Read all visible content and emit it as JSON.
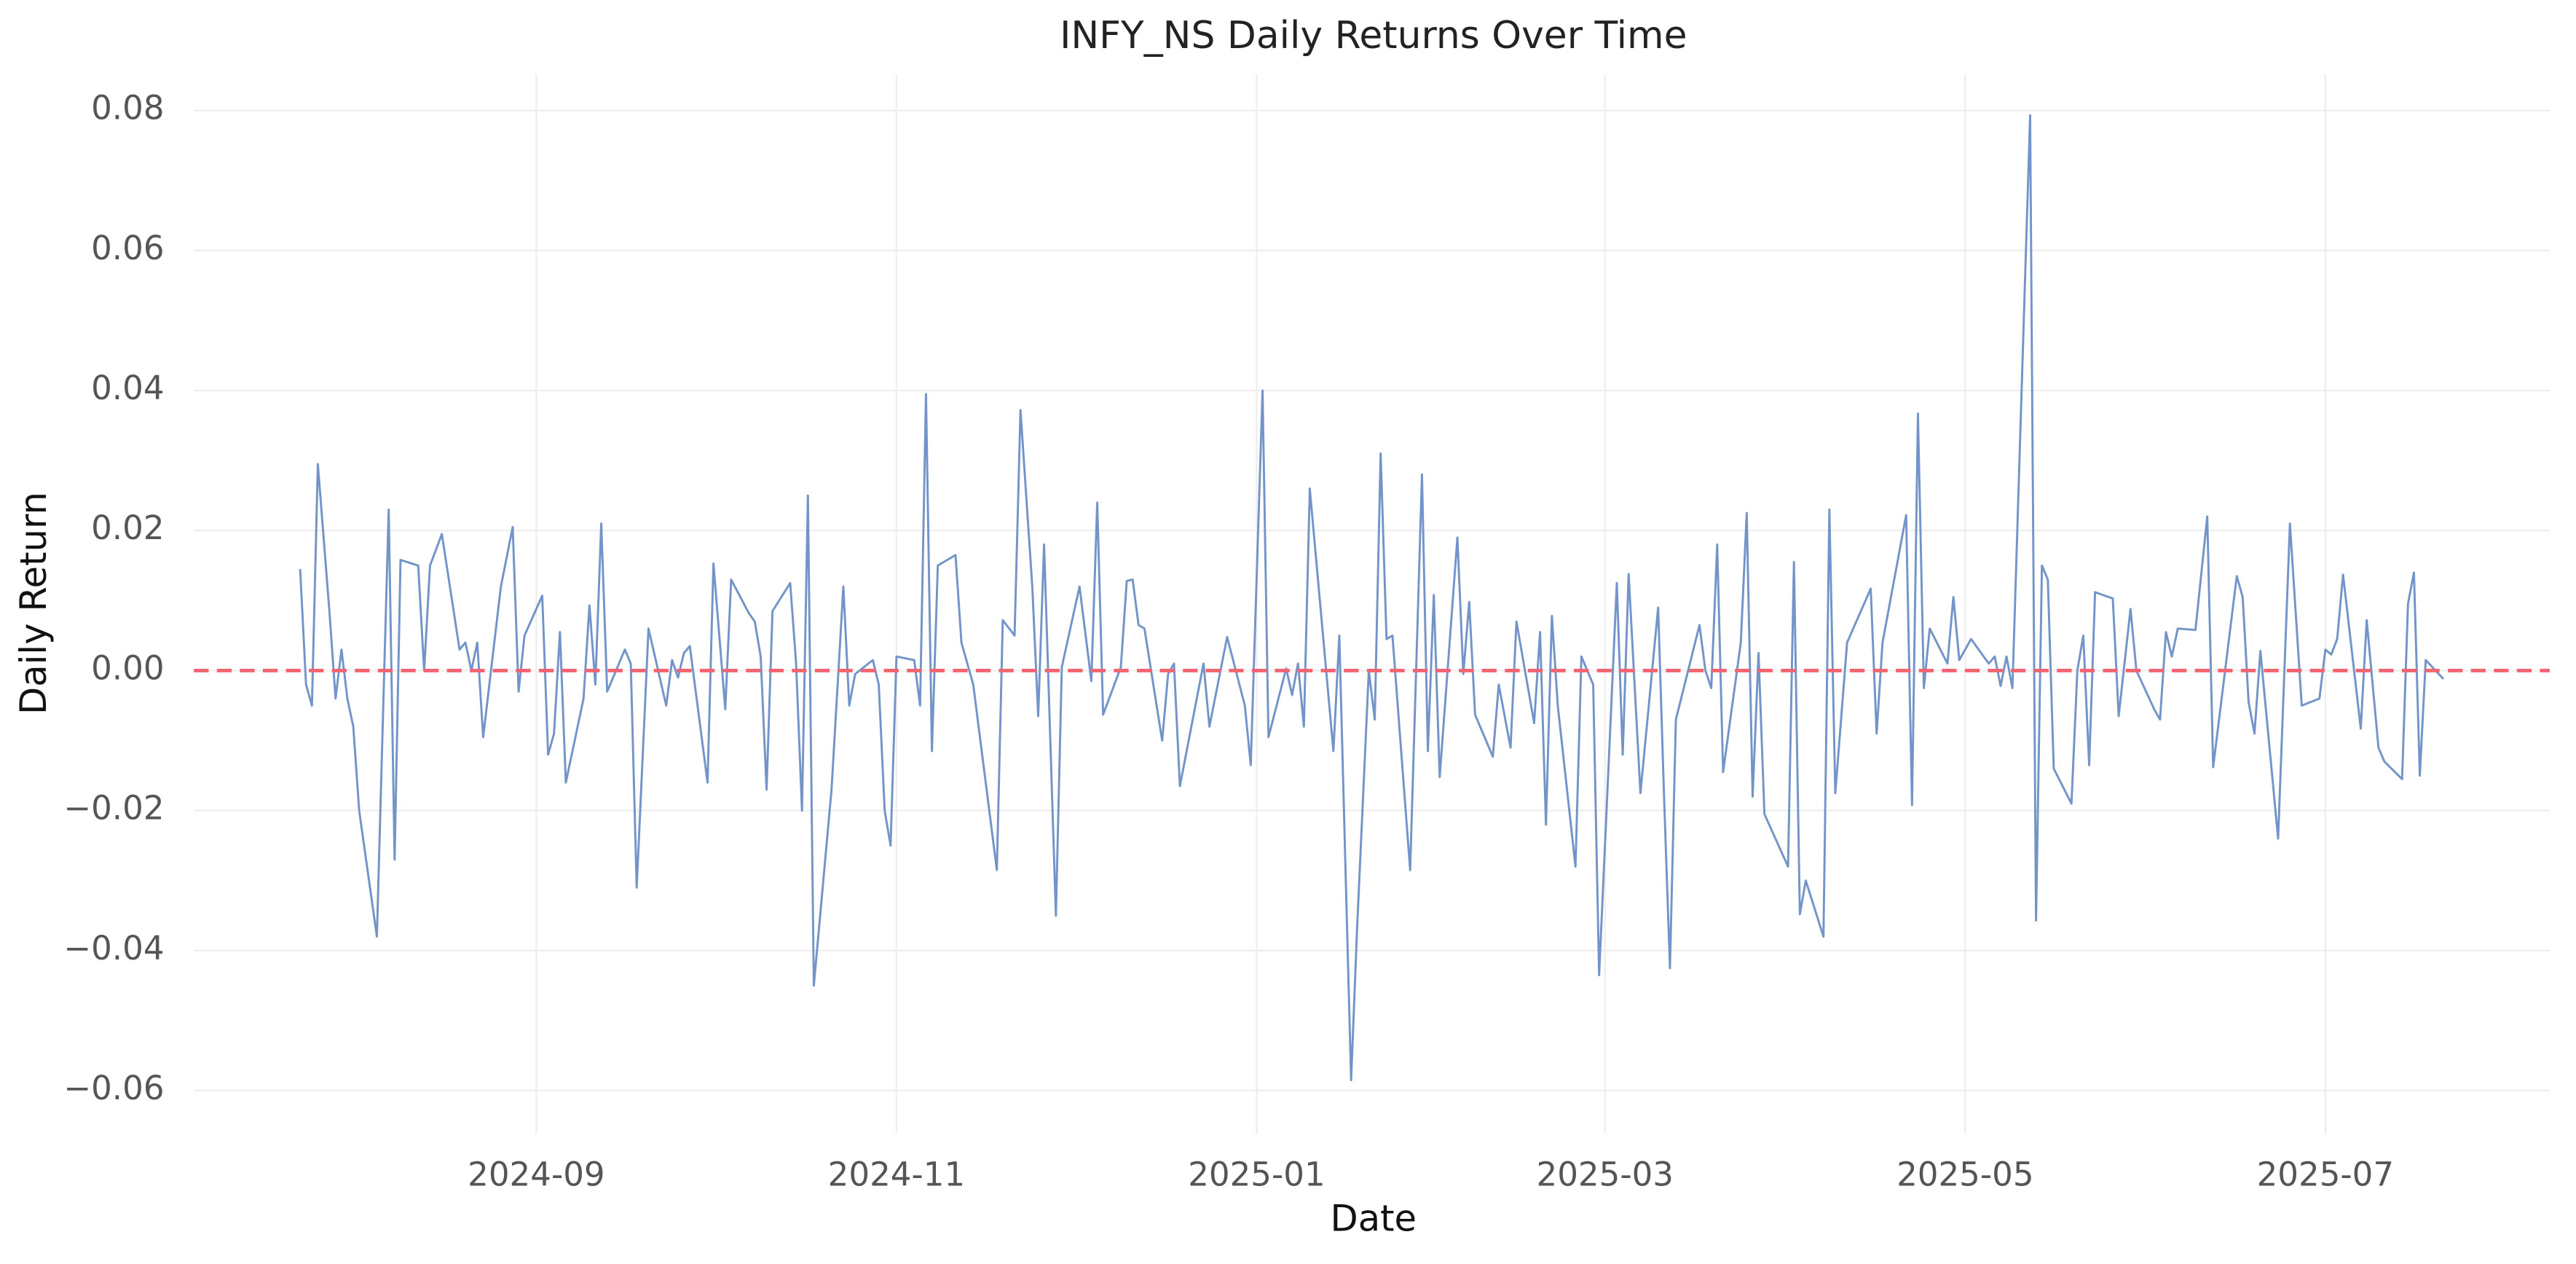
{
  "chart_data": {
    "type": "line",
    "title": "INFY_NS Daily Returns Over Time",
    "x_label": "Date",
    "y_label": "Daily Return",
    "color": "#7394c8",
    "grid": true,
    "reference_line": {
      "value": 0,
      "color": "#f26470",
      "style": "dashed"
    },
    "xlim": [
      19909,
      20308
    ],
    "xticks": [
      {
        "value": 19967,
        "label": "2024-09"
      },
      {
        "value": 20028,
        "label": "2024-11"
      },
      {
        "value": 20089,
        "label": "2025-01"
      },
      {
        "value": 20148,
        "label": "2025-03"
      },
      {
        "value": 20209,
        "label": "2025-05"
      },
      {
        "value": 20270,
        "label": "2025-07"
      }
    ],
    "ylim": [
      -0.0662,
      0.0852
    ],
    "yticks": [
      {
        "value": -0.06,
        "label": "−0.06"
      },
      {
        "value": -0.04,
        "label": "−0.04"
      },
      {
        "value": -0.02,
        "label": "−0.02"
      },
      {
        "value": 0,
        "label": "0.00"
      },
      0.02,
      0.04,
      0.06,
      0.08
    ],
    "x": [
      19927,
      19928,
      19929,
      19930,
      19932,
      19933,
      19934,
      19935,
      19936,
      19937,
      19940,
      19942,
      19943,
      19944,
      19947,
      19948,
      19949,
      19951,
      19954,
      19955,
      19956,
      19957,
      19958,
      19961,
      19963,
      19964,
      19965,
      19968,
      19969,
      19970,
      19971,
      19972,
      19975,
      19976,
      19977,
      19978,
      19979,
      19982,
      19983,
      19984,
      19986,
      19989,
      19990,
      19991,
      19992,
      19993,
      19996,
      19997,
      19999,
      20000,
      20003,
      20004,
      20005,
      20006,
      20007,
      20010,
      20011,
      20012,
      20013,
      20014,
      20017,
      20019,
      20020,
      20021,
      20024,
      20025,
      20026,
      20027,
      20028,
      20031,
      20032,
      20033,
      20034,
      20035,
      20038,
      20039,
      20041,
      20045,
      20046,
      20048,
      20049,
      20051,
      20052,
      20053,
      20055,
      20056,
      20059,
      20061,
      20062,
      20063,
      20066,
      20067,
      20068,
      20069,
      20070,
      20073,
      20074,
      20075,
      20076,
      20080,
      20081,
      20084,
      20087,
      20088,
      20090,
      20091,
      20094,
      20095,
      20096,
      20097,
      20098,
      20102,
      20103,
      20105,
      20106,
      20108,
      20109,
      20110,
      20111,
      20112,
      20115,
      20117,
      20118,
      20119,
      20120,
      20123,
      20124,
      20125,
      20126,
      20129,
      20130,
      20132,
      20133,
      20136,
      20137,
      20138,
      20139,
      20140,
      20143,
      20144,
      20146,
      20147,
      20150,
      20151,
      20152,
      20154,
      20157,
      20158,
      20159,
      20160,
      20164,
      20165,
      20166,
      20167,
      20168,
      20171,
      20172,
      20173,
      20174,
      20175,
      20179,
      20180,
      20181,
      20182,
      20185,
      20186,
      20187,
      20189,
      20193,
      20194,
      20195,
      20199,
      20200,
      20201,
      20202,
      20203,
      20206,
      20207,
      20208,
      20210,
      20213,
      20214,
      20215,
      20216,
      20217,
      20220,
      20221,
      20222,
      20223,
      20224,
      20227,
      20228,
      20229,
      20230,
      20231,
      20234,
      20235,
      20237,
      20238,
      20241,
      20242,
      20243,
      20244,
      20245,
      20248,
      20250,
      20251,
      20255,
      20256,
      20257,
      20258,
      20259,
      20262,
      20264,
      20266,
      20269,
      20270,
      20271,
      20272,
      20273,
      20276,
      20277,
      20279,
      20280,
      20283,
      20284,
      20285,
      20286,
      20287,
      20290
    ],
    "values": [
      0.0145,
      -0.002,
      -0.005,
      0.0295,
      0.008,
      -0.004,
      0.003,
      -0.004,
      -0.008,
      -0.02,
      -0.038,
      0.023,
      -0.027,
      0.0158,
      0.015,
      0.0,
      0.015,
      0.0195,
      0.003,
      0.004,
      0.0,
      0.004,
      -0.0095,
      0.012,
      0.0205,
      -0.003,
      0.005,
      0.0107,
      -0.012,
      -0.009,
      0.0055,
      -0.016,
      -0.004,
      0.0093,
      -0.002,
      0.021,
      -0.003,
      0.003,
      0.001,
      -0.031,
      0.006,
      -0.005,
      0.0015,
      -0.001,
      0.0025,
      0.0035,
      -0.016,
      0.0153,
      -0.0055,
      0.013,
      0.0082,
      0.007,
      0.002,
      -0.017,
      0.0085,
      0.0125,
      0.001,
      -0.02,
      0.025,
      -0.045,
      -0.017,
      0.012,
      -0.005,
      -0.0005,
      0.0015,
      -0.002,
      -0.02,
      -0.025,
      0.002,
      0.0015,
      -0.005,
      0.0395,
      -0.0115,
      0.015,
      0.0165,
      0.004,
      -0.002,
      -0.0285,
      0.0072,
      0.005,
      0.0372,
      0.012,
      -0.0065,
      0.018,
      -0.035,
      0.0005,
      0.012,
      -0.0015,
      0.024,
      -0.0063,
      0.0005,
      0.0128,
      0.013,
      0.0065,
      0.006,
      -0.01,
      -0.0005,
      0.001,
      -0.0165,
      0.001,
      -0.008,
      0.0048,
      -0.005,
      -0.0135,
      0.04,
      -0.0095,
      0.0003,
      -0.0035,
      0.001,
      -0.008,
      0.026,
      -0.0115,
      0.005,
      -0.0585,
      -0.037,
      0.0,
      -0.007,
      0.031,
      0.0045,
      0.005,
      -0.0285,
      0.028,
      -0.0115,
      0.0108,
      -0.0152,
      0.019,
      -0.0005,
      0.0098,
      -0.0063,
      -0.0123,
      -0.002,
      -0.011,
      0.007,
      -0.0075,
      0.0055,
      -0.022,
      0.0078,
      -0.005,
      -0.028,
      0.002,
      -0.002,
      -0.0435,
      0.0125,
      -0.012,
      0.0138,
      -0.0175,
      0.009,
      -0.018,
      -0.0425,
      -0.007,
      0.0065,
      0.0,
      -0.0025,
      0.018,
      -0.0145,
      0.004,
      0.0225,
      -0.018,
      0.0025,
      -0.0205,
      -0.028,
      0.0155,
      -0.0348,
      -0.03,
      -0.038,
      0.023,
      -0.0175,
      0.004,
      0.0117,
      -0.009,
      0.004,
      0.0222,
      -0.0192,
      0.0367,
      -0.0025,
      0.006,
      0.001,
      0.0105,
      0.0015,
      0.0045,
      0.001,
      0.002,
      -0.0022,
      0.002,
      -0.0025,
      0.0793,
      -0.0357,
      0.015,
      0.013,
      -0.014,
      -0.019,
      0.0,
      0.005,
      -0.0135,
      0.0112,
      0.0103,
      -0.0065,
      0.0088,
      0.0,
      -0.0055,
      -0.007,
      0.0055,
      0.002,
      0.006,
      0.0058,
      0.022,
      -0.0138,
      0.0135,
      0.0105,
      -0.0045,
      -0.009,
      0.0028,
      -0.024,
      0.021,
      -0.005,
      -0.004,
      0.003,
      0.0023,
      0.0045,
      0.0137,
      -0.0083,
      0.0072,
      -0.011,
      -0.013,
      -0.0155,
      0.0095,
      0.014,
      -0.015,
      0.0015,
      -0.0012
    ]
  }
}
